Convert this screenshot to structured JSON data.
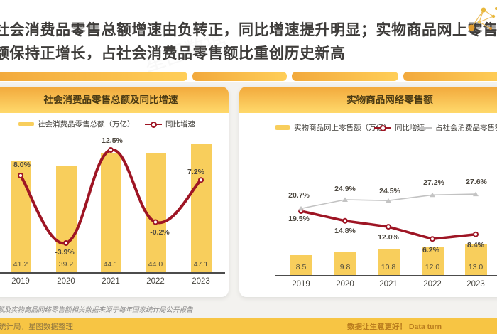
{
  "page": {
    "title_line1": "社会消费品零售总额增速由负转正，同比增速提升明显；实物商品网上零售",
    "title_line2": "额保持正增长，占社会消费品零售额比重创历史新高",
    "watermark": "星图数据",
    "note": "额及实物商品网络零售额相关数据来源于每年国家统计局公开报告",
    "footer_left": "统计局，星图数据整理",
    "footer_right": "数据让生意更好！ Data turn"
  },
  "colors": {
    "bar_yellow": "#F8CE5C",
    "line_red": "#9E1524",
    "line_gray": "#C2C2C2",
    "header_orange": "#F2A93C",
    "footer_yellow": "#F7C544"
  },
  "chart_data": [
    {
      "type": "bar",
      "title": "社会消费品零售总额及同比增速",
      "categories": [
        "2019",
        "2020",
        "2021",
        "2022",
        "2023"
      ],
      "series": [
        {
          "name": "社会消费品零售总额（万亿）",
          "kind": "bar",
          "color": "#F8CE5C",
          "values": [
            41.2,
            39.2,
            44.1,
            44.0,
            47.1
          ],
          "labels": [
            "41.2",
            "39.2",
            "44.1",
            "44.0",
            "47.1"
          ]
        },
        {
          "name": "同比增速",
          "kind": "line",
          "marker": "ring",
          "smooth": true,
          "color": "#9E1524",
          "values": [
            8.0,
            -3.9,
            12.5,
            -0.2,
            7.2
          ],
          "labels": [
            "8.0%",
            "-3.9%",
            "12.5%",
            "-0.2%",
            "7.2%"
          ]
        }
      ],
      "legend_position": "top",
      "grid": false
    },
    {
      "type": "bar",
      "title": "实物商品网络零售额",
      "categories": [
        "2019",
        "2020",
        "2021",
        "2022",
        "2023"
      ],
      "series": [
        {
          "name": "实物商品网上零售额（万亿）",
          "kind": "bar",
          "color": "#F8CE5C",
          "values": [
            8.5,
            9.8,
            10.8,
            12.0,
            13.0
          ],
          "labels": [
            "8.5",
            "9.8",
            "10.8",
            "12.0",
            "13.0"
          ]
        },
        {
          "name": "同比增速",
          "kind": "line",
          "marker": "ring",
          "smooth": false,
          "color": "#9E1524",
          "values": [
            19.5,
            14.8,
            12.0,
            6.2,
            8.4
          ],
          "labels": [
            "19.5%",
            "14.8%",
            "12.0%",
            "6.2%",
            "8.4%"
          ]
        },
        {
          "name": "占社会消费品零售额比例",
          "kind": "line",
          "marker": "triangle",
          "smooth": false,
          "color": "#C2C2C2",
          "values": [
            20.7,
            24.9,
            24.5,
            27.2,
            27.6
          ],
          "labels": [
            "20.7%",
            "24.9%",
            "24.5%",
            "27.2%",
            "27.6%"
          ]
        }
      ],
      "legend_position": "top",
      "grid": false
    }
  ]
}
